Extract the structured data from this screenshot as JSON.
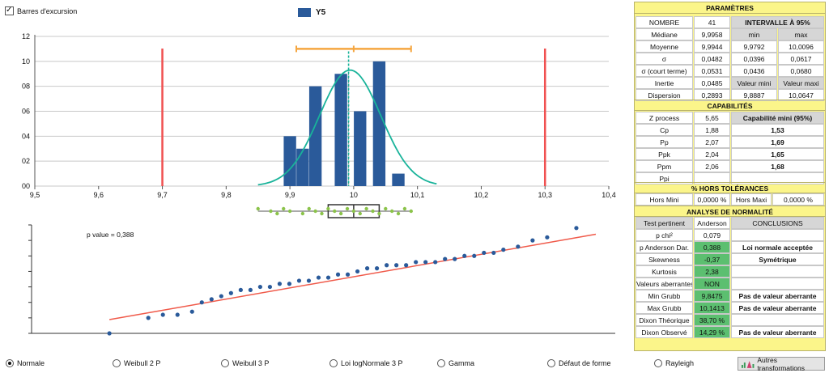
{
  "checkbox": {
    "label": "Barres d'excursion",
    "checked": true
  },
  "legend": {
    "label": "Y5",
    "color": "#2a5a9a"
  },
  "chart_data": {
    "type": "bar",
    "x_ticks": [
      "9,5",
      "9,6",
      "9,7",
      "9,8",
      "9,9",
      "10",
      "10,1",
      "10,2",
      "10,3",
      "10,4"
    ],
    "y_ticks": [
      "00",
      "02",
      "04",
      "06",
      "08",
      "10",
      "12"
    ],
    "xlim": [
      9.5,
      10.4
    ],
    "ylim": [
      0,
      12
    ],
    "bar_width": 0.0195,
    "bars": [
      {
        "x": 9.9,
        "value": 4
      },
      {
        "x": 9.92,
        "value": 3
      },
      {
        "x": 9.94,
        "value": 8
      },
      {
        "x": 9.98,
        "value": 9
      },
      {
        "x": 10.01,
        "value": 6
      },
      {
        "x": 10.04,
        "value": 10
      },
      {
        "x": 10.07,
        "value": 1
      }
    ],
    "spec_limits": [
      9.7,
      10.3
    ],
    "mean": 9.9944,
    "median": 9.9958,
    "excursion_bar": {
      "min": 9.91,
      "max": 10.09,
      "y": 11
    },
    "normal_curve": {
      "mu": 9.9944,
      "sigma": 0.0482,
      "peak": 9.3,
      "from": 9.85,
      "to": 10.13
    },
    "colors": {
      "bar": "#2a5a9a",
      "limit": "#f05050",
      "curve": "#19b39a",
      "excursion": "#f5a640",
      "median": "#19b39a",
      "mean": "#888888",
      "box_points": "#8bc34a"
    },
    "boxplot": {
      "q1": 9.96,
      "median": 10.0,
      "q3": 10.04,
      "points": [
        9.85,
        9.87,
        9.88,
        9.89,
        9.9,
        9.92,
        9.93,
        9.94,
        9.95,
        9.96,
        9.97,
        9.98,
        9.99,
        10.0,
        10.01,
        10.02,
        10.03,
        10.04,
        10.05,
        10.06,
        10.07,
        10.08,
        10.09
      ]
    },
    "qq_plot": {
      "title": "p value = 0,388",
      "points": [
        [
          -2.4,
          9.8
        ],
        [
          -2.0,
          9.85
        ],
        [
          -1.85,
          9.86
        ],
        [
          -1.7,
          9.86
        ],
        [
          -1.55,
          9.87
        ],
        [
          -1.45,
          9.9
        ],
        [
          -1.35,
          9.91
        ],
        [
          -1.25,
          9.92
        ],
        [
          -1.15,
          9.93
        ],
        [
          -1.05,
          9.94
        ],
        [
          -0.95,
          9.94
        ],
        [
          -0.85,
          9.95
        ],
        [
          -0.75,
          9.95
        ],
        [
          -0.65,
          9.96
        ],
        [
          -0.55,
          9.96
        ],
        [
          -0.45,
          9.97
        ],
        [
          -0.35,
          9.97
        ],
        [
          -0.25,
          9.98
        ],
        [
          -0.15,
          9.98
        ],
        [
          -0.05,
          9.99
        ],
        [
          0.05,
          9.99
        ],
        [
          0.15,
          10.0
        ],
        [
          0.25,
          10.01
        ],
        [
          0.35,
          10.01
        ],
        [
          0.45,
          10.02
        ],
        [
          0.55,
          10.02
        ],
        [
          0.65,
          10.02
        ],
        [
          0.75,
          10.03
        ],
        [
          0.85,
          10.03
        ],
        [
          0.95,
          10.03
        ],
        [
          1.05,
          10.04
        ],
        [
          1.15,
          10.04
        ],
        [
          1.25,
          10.05
        ],
        [
          1.35,
          10.05
        ],
        [
          1.45,
          10.06
        ],
        [
          1.55,
          10.06
        ],
        [
          1.65,
          10.07
        ],
        [
          1.8,
          10.08
        ],
        [
          1.95,
          10.1
        ],
        [
          2.1,
          10.11
        ],
        [
          2.4,
          10.14
        ]
      ],
      "line": [
        [
          -2.4,
          9.86
        ],
        [
          2.6,
          10.12
        ]
      ],
      "xlim": [
        -3.2,
        2.8
      ],
      "ylim": [
        9.8,
        10.15
      ]
    }
  },
  "panel": {
    "parametres": {
      "title": "PARAMÈTRES",
      "nombre_label": "NOMBRE",
      "nombre_value": "41",
      "interval_header": "INTERVALLE À 95%",
      "min_label": "min",
      "max_label": "max",
      "rows": [
        {
          "label": "Médiane",
          "value": "9,9958",
          "a": "min",
          "b": "max"
        },
        {
          "label": "Moyenne",
          "value": "9,9944",
          "a": "9,9792",
          "b": "10,0096"
        },
        {
          "label": "σ",
          "value": "0,0482",
          "a": "0,0396",
          "b": "0,0617"
        },
        {
          "label": "σ (court terme)",
          "value": "0,0531",
          "a": "0,0436",
          "b": "0,0680"
        },
        {
          "label": "Inertie",
          "value": "0,0485",
          "a": "Valeur mini",
          "b": "Valeur maxi"
        },
        {
          "label": "Dispersion",
          "value": "0,2893",
          "a": "9,8887",
          "b": "10,0647"
        }
      ]
    },
    "capabilites": {
      "title": "CAPABILITÉS",
      "zprocess_label": "Z process",
      "zprocess_value": "5,65",
      "capmini_header": "Capabilité mini (95%)",
      "rows": [
        {
          "label": "Cp",
          "value": "1,88",
          "mini": "1,53"
        },
        {
          "label": "Pp",
          "value": "2,07",
          "mini": "1,69"
        },
        {
          "label": "Ppk",
          "value": "2,04",
          "mini": "1,65"
        },
        {
          "label": "Ppm",
          "value": "2,06",
          "mini": "1,68"
        },
        {
          "label": "Ppi",
          "value": "",
          "mini": ""
        }
      ]
    },
    "hors": {
      "title": "% HORS TOLÉRANCES",
      "mini_label": "Hors Mini",
      "mini_value": "0,0000 %",
      "maxi_label": "Hors Maxi",
      "maxi_value": "0,0000 %"
    },
    "normalite": {
      "title": "ANALYSE DE NORMALITÉ",
      "h1": "Test pertinent",
      "h2": "Anderson",
      "h3": "CONCLUSIONS",
      "rows": [
        {
          "label": "p chi²",
          "value": "0,079",
          "green": false,
          "conclusion": ""
        },
        {
          "label": "p Anderson Dar.",
          "value": "0,388",
          "green": true,
          "conclusion": "Loi normale acceptée"
        },
        {
          "label": "Skewness",
          "value": "-0,37",
          "green": true,
          "conclusion": "Symétrique"
        },
        {
          "label": "Kurtosis",
          "value": "2,38",
          "green": true,
          "conclusion": ""
        },
        {
          "label": "Valeurs aberrantes",
          "value": "NON",
          "green": true,
          "conclusion": ""
        },
        {
          "label": "Min Grubb",
          "value": "9,8475",
          "green": true,
          "conclusion": "Pas de valeur aberrante"
        },
        {
          "label": "Max Grubb",
          "value": "10,1413",
          "green": true,
          "conclusion": "Pas de valeur aberrante"
        },
        {
          "label": "Dixon Théorique",
          "value": "38,70 %",
          "green": true,
          "conclusion": ""
        },
        {
          "label": "Dixon Observé",
          "value": "14,29 %",
          "green": true,
          "conclusion": "Pas de valeur aberrante"
        }
      ]
    }
  },
  "radios": [
    {
      "label": "Normale",
      "checked": true
    },
    {
      "label": "Weibull 2 P",
      "checked": false
    },
    {
      "label": "Weibull 3 P",
      "checked": false
    },
    {
      "label": "Loi logNormale 3 P",
      "checked": false
    },
    {
      "label": "Gamma",
      "checked": false
    },
    {
      "label": "Défaut de forme",
      "checked": false
    },
    {
      "label": "Rayleigh",
      "checked": false
    }
  ],
  "transform_button": {
    "label": "Autres transformations",
    "icon": "transform-icon"
  }
}
